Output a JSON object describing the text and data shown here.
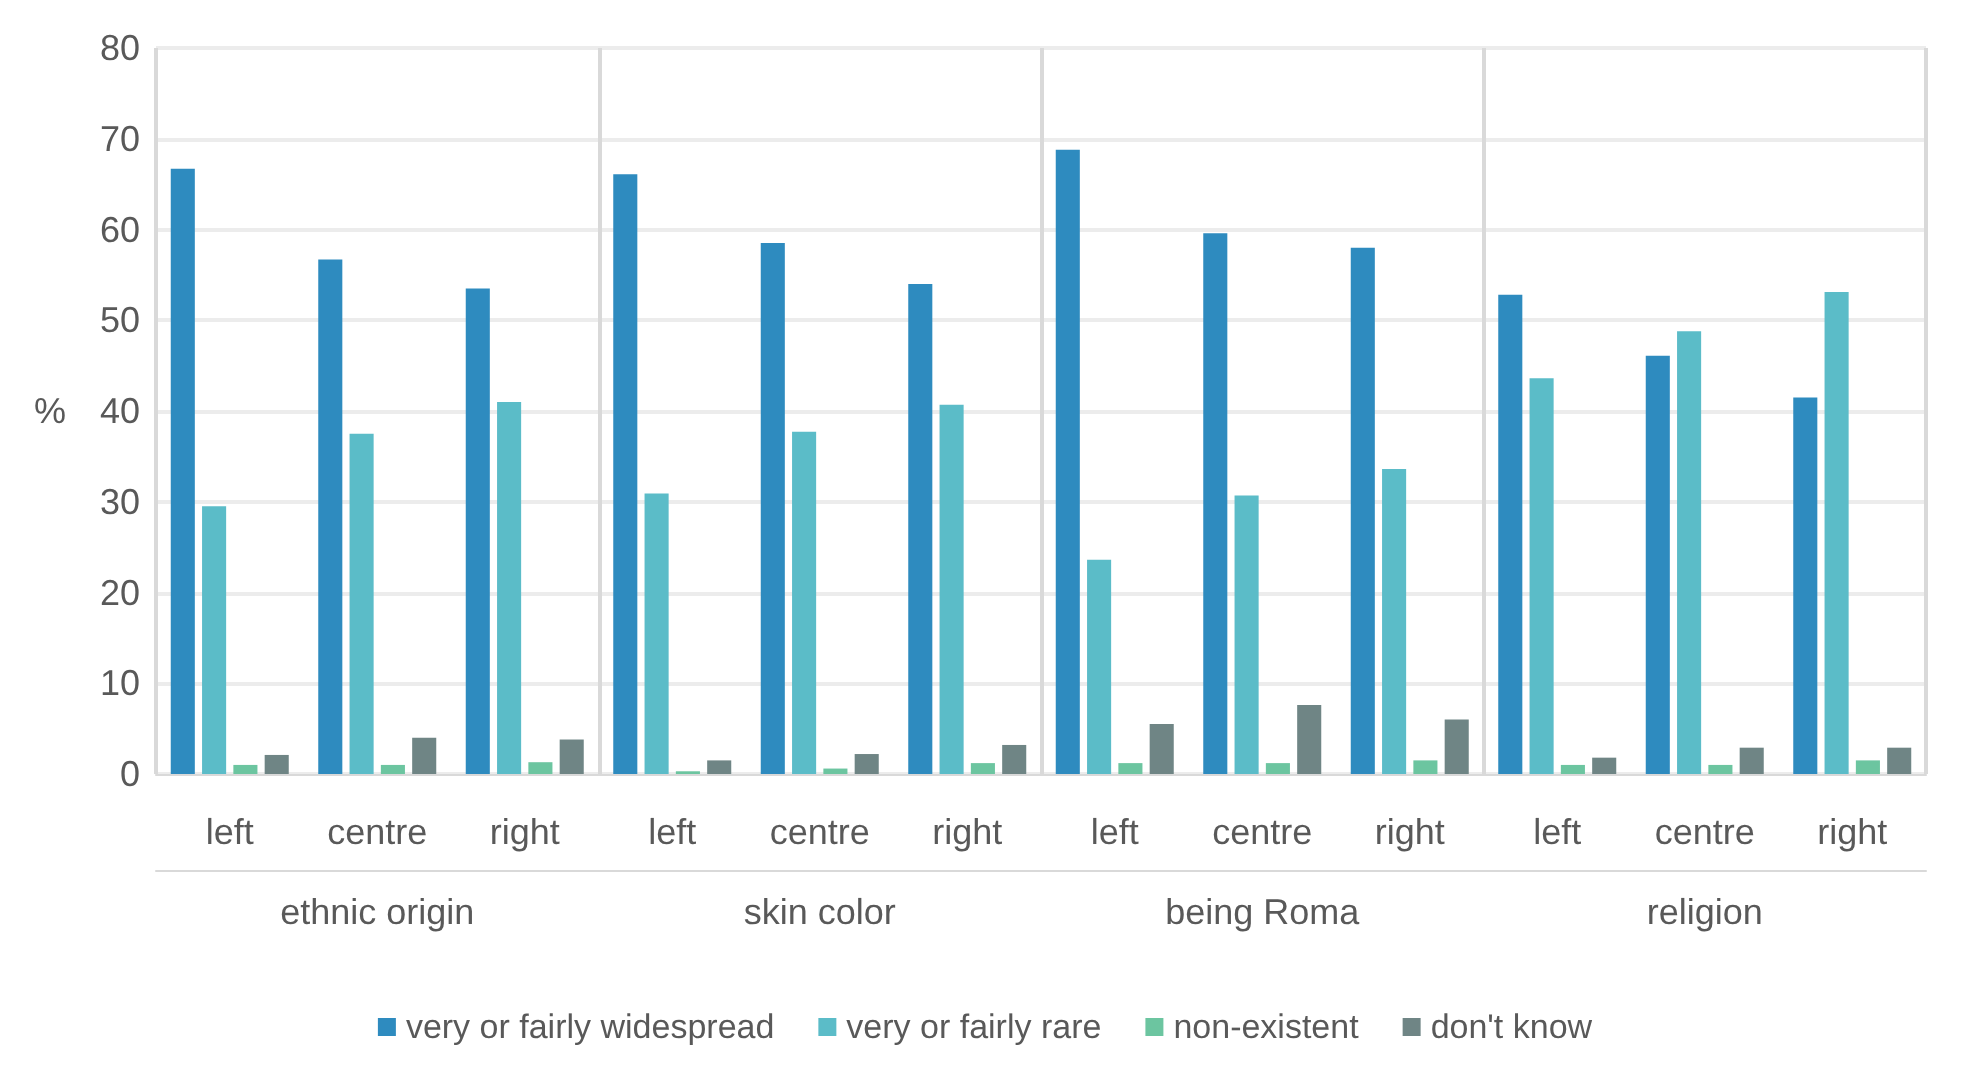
{
  "chart_data": {
    "type": "bar",
    "ylabel": "%",
    "categories": [
      "left",
      "centre",
      "right",
      "left",
      "centre",
      "right",
      "left",
      "centre",
      "right",
      "left",
      "centre",
      "right"
    ],
    "annotations": [
      "ethnic origin",
      "skin color",
      "being Roma",
      "religion"
    ],
    "series": [
      {
        "name": "very or fairly widespread",
        "color": "#2e8bbf",
        "values": [
          66.7,
          56.7,
          53.5,
          66.1,
          58.5,
          54,
          68.8,
          59.6,
          58,
          52.8,
          46.1,
          41.5
        ]
      },
      {
        "name": "very or fairly rare",
        "color": "#5bbcc8",
        "values": [
          29.5,
          37.5,
          41,
          30.9,
          37.7,
          40.7,
          23.6,
          30.7,
          33.6,
          43.6,
          48.8,
          53.1
        ]
      },
      {
        "name": "non-existent",
        "color": "#6cc5a0",
        "values": [
          1,
          1,
          1.3,
          0.3,
          0.6,
          1.2,
          1.2,
          1.2,
          1.5,
          1,
          1,
          1.5
        ]
      },
      {
        "name": "don't know",
        "color": "#6f8585",
        "values": [
          2.1,
          4,
          3.8,
          1.5,
          2.2,
          3.2,
          5.5,
          7.6,
          6,
          1.8,
          2.9,
          2.9
        ]
      }
    ],
    "ylim": [
      0,
      80
    ],
    "yticks": [
      0,
      10,
      20,
      30,
      40,
      50,
      60,
      70,
      80
    ],
    "grid": "y",
    "legend": "bottom"
  }
}
